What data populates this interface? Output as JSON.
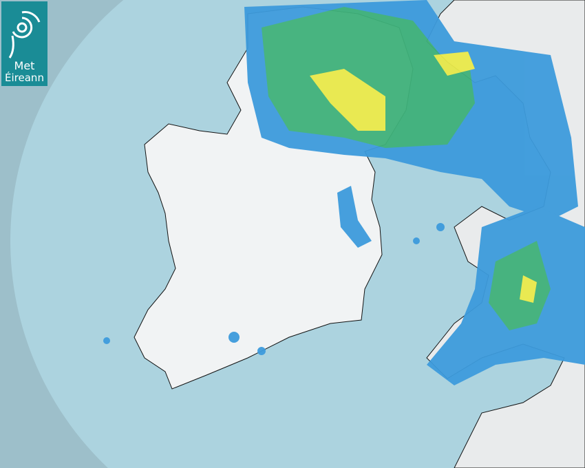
{
  "logo": {
    "line1": "Met",
    "line2": "Éireann"
  },
  "colors": {
    "sea_outside_coverage": "#9dbfca",
    "sea_inside_coverage": "#acd3df",
    "land": "#f1f3f4",
    "rain_light": "#3d9bdc",
    "rain_moderate": "#3fb17a",
    "rain_heavy": "#e9e94a",
    "logo_bg": "#1a8c96"
  },
  "icons": {
    "logo": "met-eireann-spiral-icon"
  }
}
